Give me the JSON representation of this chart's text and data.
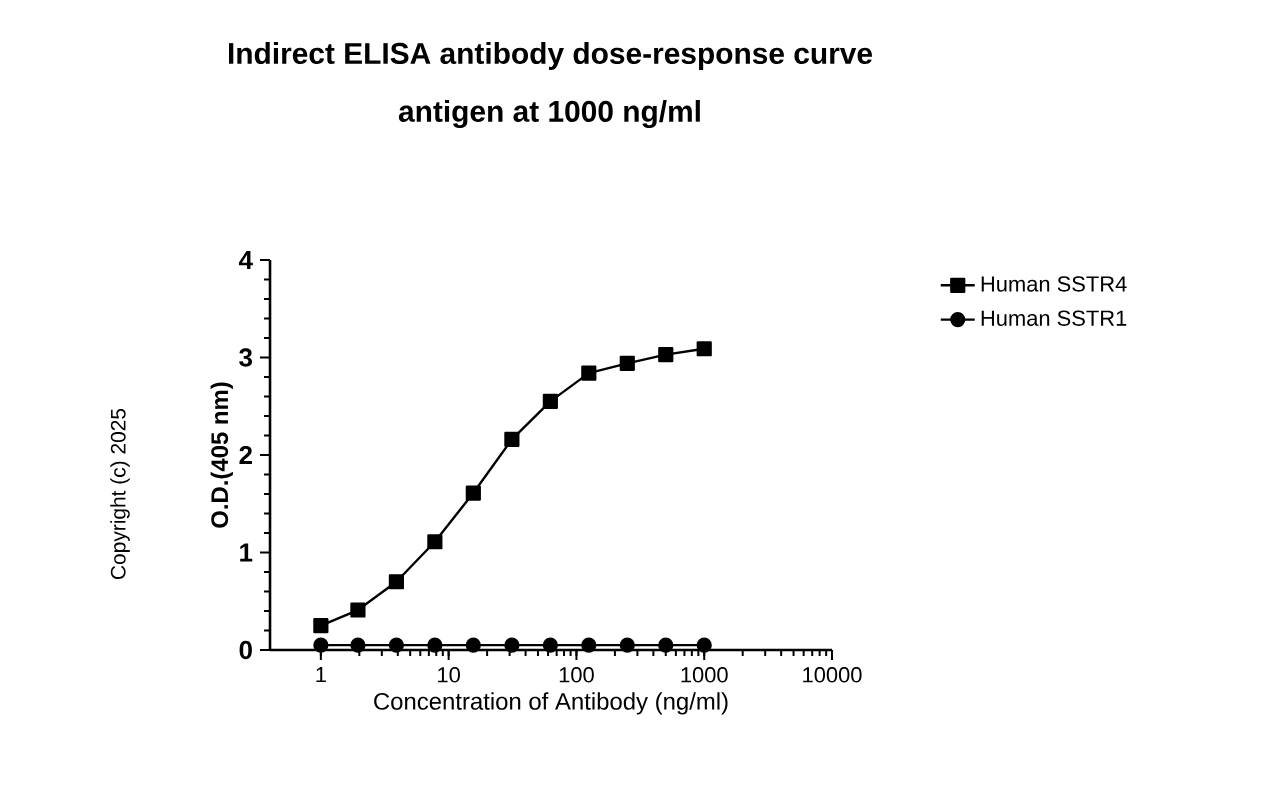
{
  "chart_data": {
    "type": "line",
    "title": "Indirect ELISA antibody dose-response curve",
    "subtitle": "antigen at 1000 ng/ml",
    "xlabel": "Concentration of Antibody (ng/ml)",
    "ylabel": "O.D.(405 nm)",
    "annotations": [
      "Copyright (c) 2025"
    ],
    "log": "x",
    "xlim": [
      0.4,
      10000
    ],
    "xticks": [
      1,
      10,
      100,
      1000,
      10000
    ],
    "ylim": [
      0,
      4
    ],
    "yticks": [
      0,
      1,
      2,
      3,
      4
    ],
    "grid": false,
    "legend": "right",
    "line_style": "solid",
    "series": [
      {
        "name": "Human SSTR4",
        "color": "#000000",
        "marker": "square",
        "x": [
          1,
          1.95,
          3.9,
          7.8,
          15.6,
          31.25,
          62.5,
          125,
          250,
          500,
          1000
        ],
        "values": [
          0.25,
          0.41,
          0.7,
          1.11,
          1.61,
          2.16,
          2.55,
          2.84,
          2.94,
          3.03,
          3.09
        ]
      },
      {
        "name": "Human SSTR1",
        "color": "#000000",
        "marker": "circle",
        "x": [
          1,
          1.95,
          3.9,
          7.8,
          15.6,
          31.25,
          62.5,
          125,
          250,
          500,
          1000
        ],
        "values": [
          0.05,
          0.05,
          0.05,
          0.05,
          0.05,
          0.05,
          0.05,
          0.05,
          0.05,
          0.05,
          0.05
        ]
      }
    ]
  }
}
